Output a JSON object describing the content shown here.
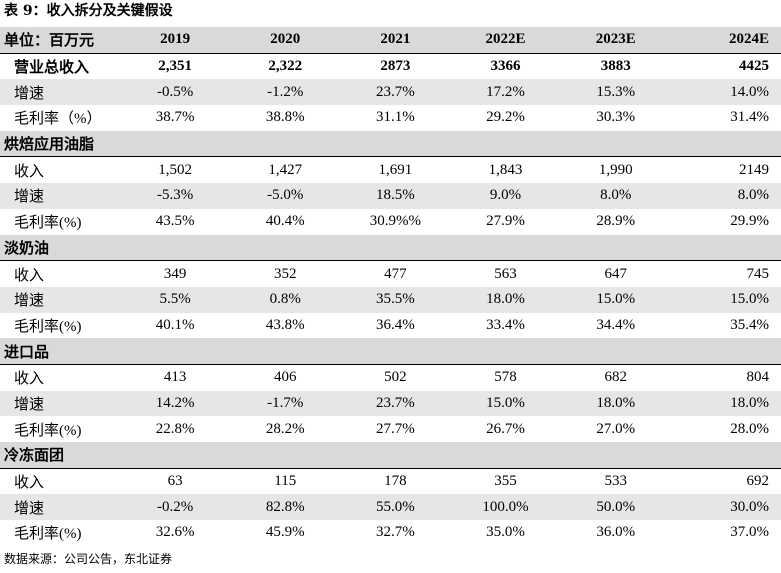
{
  "caption": "表 9：收入拆分及关键假设",
  "header": {
    "unit_label": "单位：百万元",
    "years": [
      "2019",
      "2020",
      "2021",
      "2022E",
      "2023E",
      "2024E"
    ]
  },
  "total": {
    "revenue": {
      "label": "营业总收入",
      "values": [
        "2,351",
        "2,322",
        "2873",
        "3366",
        "3883",
        "4425"
      ]
    },
    "growth": {
      "label": "增速",
      "values": [
        "-0.5%",
        "-1.2%",
        "23.7%",
        "17.2%",
        "15.3%",
        "14.0%"
      ]
    },
    "margin": {
      "label": "毛利率（%）",
      "values": [
        "38.7%",
        "38.8%",
        "31.1%",
        "29.2%",
        "30.3%",
        "31.4%"
      ]
    }
  },
  "segments": [
    {
      "name": "烘焙应用油脂",
      "revenue": {
        "label": "收入",
        "values": [
          "1,502",
          "1,427",
          "1,691",
          "1,843",
          "1,990",
          "2149"
        ]
      },
      "growth": {
        "label": "增速",
        "values": [
          "-5.3%",
          "-5.0%",
          "18.5%",
          "9.0%",
          "8.0%",
          "8.0%"
        ]
      },
      "margin": {
        "label": "毛利率(%)",
        "values": [
          "43.5%",
          "40.4%",
          "30.9%%",
          "27.9%",
          "28.9%",
          "29.9%"
        ]
      }
    },
    {
      "name": "淡奶油",
      "revenue": {
        "label": "收入",
        "values": [
          "349",
          "352",
          "477",
          "563",
          "647",
          "745"
        ]
      },
      "growth": {
        "label": "增速",
        "values": [
          "5.5%",
          "0.8%",
          "35.5%",
          "18.0%",
          "15.0%",
          "15.0%"
        ]
      },
      "margin": {
        "label": "毛利率(%)",
        "values": [
          "40.1%",
          "43.8%",
          "36.4%",
          "33.4%",
          "34.4%",
          "35.4%"
        ]
      }
    },
    {
      "name": "进口品",
      "revenue": {
        "label": "收入",
        "values": [
          "413",
          "406",
          "502",
          "578",
          "682",
          "804"
        ]
      },
      "growth": {
        "label": "增速",
        "values": [
          "14.2%",
          "-1.7%",
          "23.7%",
          "15.0%",
          "18.0%",
          "18.0%"
        ]
      },
      "margin": {
        "label": "毛利率(%)",
        "values": [
          "22.8%",
          "28.2%",
          "27.7%",
          "26.7%",
          "27.0%",
          "28.0%"
        ]
      }
    },
    {
      "name": "冷冻面团",
      "revenue": {
        "label": "收入",
        "values": [
          "63",
          "115",
          "178",
          "355",
          "533",
          "692"
        ]
      },
      "growth": {
        "label": "增速",
        "values": [
          "-0.2%",
          "82.8%",
          "55.0%",
          "100.0%",
          "50.0%",
          "30.0%"
        ]
      },
      "margin": {
        "label": "毛利率(%)",
        "values": [
          "32.6%",
          "45.9%",
          "32.7%",
          "35.0%",
          "36.0%",
          "37.0%"
        ]
      }
    }
  ],
  "source": "数据来源：公司公告，东北证券"
}
